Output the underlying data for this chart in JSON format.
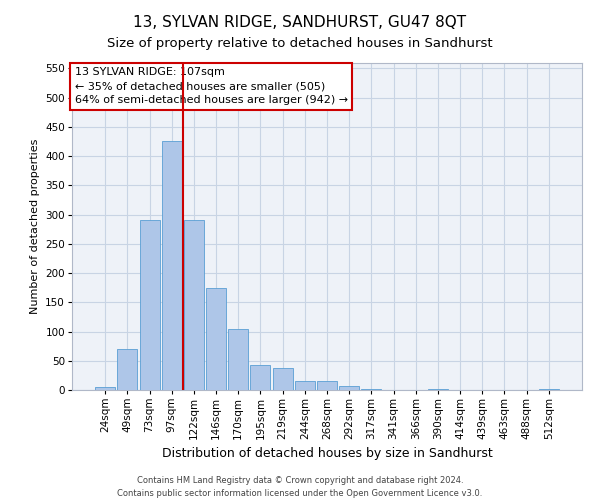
{
  "title": "13, SYLVAN RIDGE, SANDHURST, GU47 8QT",
  "subtitle": "Size of property relative to detached houses in Sandhurst",
  "xlabel": "Distribution of detached houses by size in Sandhurst",
  "ylabel": "Number of detached properties",
  "bar_labels": [
    "24sqm",
    "49sqm",
    "73sqm",
    "97sqm",
    "122sqm",
    "146sqm",
    "170sqm",
    "195sqm",
    "219sqm",
    "244sqm",
    "268sqm",
    "292sqm",
    "317sqm",
    "341sqm",
    "366sqm",
    "390sqm",
    "414sqm",
    "439sqm",
    "463sqm",
    "488sqm",
    "512sqm"
  ],
  "bar_values": [
    5,
    70,
    290,
    425,
    290,
    175,
    105,
    43,
    38,
    16,
    15,
    6,
    2,
    0,
    0,
    2,
    0,
    0,
    0,
    0,
    2
  ],
  "bar_color": "#aec6e8",
  "bar_edge_color": "#5a9fd4",
  "property_line_x": 3.5,
  "property_line_label": "13 SYLVAN RIDGE: 107sqm",
  "annotation_line1": "← 35% of detached houses are smaller (505)",
  "annotation_line2": "64% of semi-detached houses are larger (942) →",
  "red_line_color": "#cc0000",
  "annotation_box_edge": "#cc0000",
  "ylim": [
    0,
    560
  ],
  "yticks": [
    0,
    50,
    100,
    150,
    200,
    250,
    300,
    350,
    400,
    450,
    500,
    550
  ],
  "footer_line1": "Contains HM Land Registry data © Crown copyright and database right 2024.",
  "footer_line2": "Contains public sector information licensed under the Open Government Licence v3.0.",
  "bg_color": "#eef2f8",
  "grid_color": "#c8d4e4",
  "title_fontsize": 11,
  "subtitle_fontsize": 9.5,
  "xlabel_fontsize": 9,
  "ylabel_fontsize": 8,
  "tick_fontsize": 7.5,
  "annotation_fontsize": 8,
  "footer_fontsize": 6,
  "bar_width": 0.9
}
